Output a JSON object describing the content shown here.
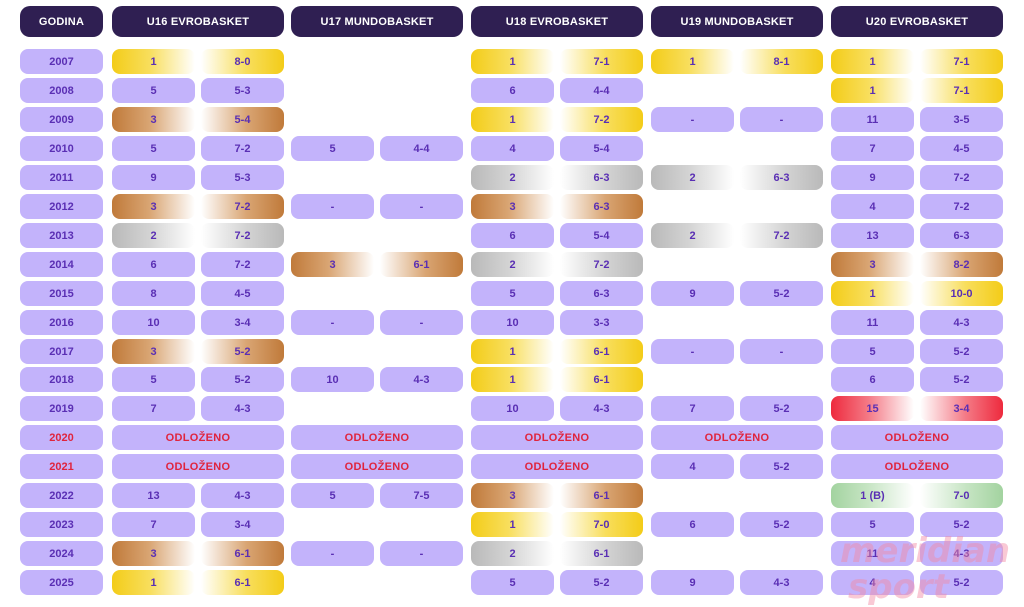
{
  "columns": [
    {
      "id": "godina",
      "label": "GODINA"
    },
    {
      "id": "u16",
      "label": "U16 EVROBASKET"
    },
    {
      "id": "u17",
      "label": "U17 MUNDOBASKET"
    },
    {
      "id": "u18",
      "label": "U18 EVROBASKET"
    },
    {
      "id": "u19",
      "label": "U19 MUNDOBASKET"
    },
    {
      "id": "u20",
      "label": "U20 EVROBASKET"
    }
  ],
  "postponed_label": "ODLOŽENO",
  "watermark": {
    "line1": "meridian",
    "line2": "sport"
  },
  "colors": {
    "header_bg": "#2f1f52",
    "cell_bg": "#c3b3fb",
    "text": "#5a2fb4",
    "postponed_text": "#e0243d",
    "gold": "#f3cc18",
    "silver": "#b9b9b9",
    "bronze": "#c07a3a",
    "last_place": "#ee2a3d",
    "division_b": "#a3d3a0"
  },
  "rows": [
    {
      "year": "2007",
      "u16": {
        "place": "1",
        "record": "8-0",
        "medal": "gold"
      },
      "u17": null,
      "u18": {
        "place": "1",
        "record": "7-1",
        "medal": "gold"
      },
      "u19": {
        "place": "1",
        "record": "8-1",
        "medal": "gold"
      },
      "u20": {
        "place": "1",
        "record": "7-1",
        "medal": "gold"
      }
    },
    {
      "year": "2008",
      "u16": {
        "place": "5",
        "record": "5-3"
      },
      "u17": null,
      "u18": {
        "place": "6",
        "record": "4-4"
      },
      "u19": null,
      "u20": {
        "place": "1",
        "record": "7-1",
        "medal": "gold"
      }
    },
    {
      "year": "2009",
      "u16": {
        "place": "3",
        "record": "5-4",
        "medal": "bronze"
      },
      "u17": null,
      "u18": {
        "place": "1",
        "record": "7-2",
        "medal": "gold"
      },
      "u19": {
        "place": "-",
        "record": "-"
      },
      "u20": {
        "place": "11",
        "record": "3-5"
      }
    },
    {
      "year": "2010",
      "u16": {
        "place": "5",
        "record": "7-2"
      },
      "u17": {
        "place": "5",
        "record": "4-4"
      },
      "u18": {
        "place": "4",
        "record": "5-4"
      },
      "u19": null,
      "u20": {
        "place": "7",
        "record": "4-5"
      }
    },
    {
      "year": "2011",
      "u16": {
        "place": "9",
        "record": "5-3"
      },
      "u17": null,
      "u18": {
        "place": "2",
        "record": "6-3",
        "medal": "silver"
      },
      "u19": {
        "place": "2",
        "record": "6-3",
        "medal": "silver"
      },
      "u20": {
        "place": "9",
        "record": "7-2"
      }
    },
    {
      "year": "2012",
      "u16": {
        "place": "3",
        "record": "7-2",
        "medal": "bronze"
      },
      "u17": {
        "place": "-",
        "record": "-"
      },
      "u18": {
        "place": "3",
        "record": "6-3",
        "medal": "bronze"
      },
      "u19": null,
      "u20": {
        "place": "4",
        "record": "7-2"
      }
    },
    {
      "year": "2013",
      "u16": {
        "place": "2",
        "record": "7-2",
        "medal": "silver"
      },
      "u17": null,
      "u18": {
        "place": "6",
        "record": "5-4"
      },
      "u19": {
        "place": "2",
        "record": "7-2",
        "medal": "silver"
      },
      "u20": {
        "place": "13",
        "record": "6-3"
      }
    },
    {
      "year": "2014",
      "u16": {
        "place": "6",
        "record": "7-2"
      },
      "u17": {
        "place": "3",
        "record": "6-1",
        "medal": "bronze"
      },
      "u18": {
        "place": "2",
        "record": "7-2",
        "medal": "silver"
      },
      "u19": null,
      "u20": {
        "place": "3",
        "record": "8-2",
        "medal": "bronze"
      }
    },
    {
      "year": "2015",
      "u16": {
        "place": "8",
        "record": "4-5"
      },
      "u17": null,
      "u18": {
        "place": "5",
        "record": "6-3"
      },
      "u19": {
        "place": "9",
        "record": "5-2"
      },
      "u20": {
        "place": "1",
        "record": "10-0",
        "medal": "gold"
      }
    },
    {
      "year": "2016",
      "u16": {
        "place": "10",
        "record": "3-4"
      },
      "u17": {
        "place": "-",
        "record": "-"
      },
      "u18": {
        "place": "10",
        "record": "3-3"
      },
      "u19": null,
      "u20": {
        "place": "11",
        "record": "4-3"
      }
    },
    {
      "year": "2017",
      "u16": {
        "place": "3",
        "record": "5-2",
        "medal": "bronze"
      },
      "u17": null,
      "u18": {
        "place": "1",
        "record": "6-1",
        "medal": "gold"
      },
      "u19": {
        "place": "-",
        "record": "-"
      },
      "u20": {
        "place": "5",
        "record": "5-2"
      }
    },
    {
      "year": "2018",
      "u16": {
        "place": "5",
        "record": "5-2"
      },
      "u17": {
        "place": "10",
        "record": "4-3"
      },
      "u18": {
        "place": "1",
        "record": "6-1",
        "medal": "gold"
      },
      "u19": null,
      "u20": {
        "place": "6",
        "record": "5-2"
      }
    },
    {
      "year": "2019",
      "u16": {
        "place": "7",
        "record": "4-3"
      },
      "u17": null,
      "u18": {
        "place": "10",
        "record": "4-3"
      },
      "u19": {
        "place": "7",
        "record": "5-2"
      },
      "u20": {
        "place": "15",
        "record": "3-4",
        "medal": "red"
      }
    },
    {
      "year": "2020",
      "year_highlight": "red",
      "u16": "postponed",
      "u17": "postponed",
      "u18": "postponed",
      "u19": "postponed",
      "u20": "postponed"
    },
    {
      "year": "2021",
      "year_highlight": "red",
      "u16": "postponed",
      "u17": "postponed",
      "u18": "postponed",
      "u19": {
        "place": "4",
        "record": "5-2"
      },
      "u20": "postponed"
    },
    {
      "year": "2022",
      "u16": {
        "place": "13",
        "record": "4-3"
      },
      "u17": {
        "place": "5",
        "record": "7-5"
      },
      "u18": {
        "place": "3",
        "record": "6-1",
        "medal": "bronze"
      },
      "u19": null,
      "u20": {
        "place": "1 (B)",
        "record": "7-0",
        "medal": "green"
      }
    },
    {
      "year": "2023",
      "u16": {
        "place": "7",
        "record": "3-4"
      },
      "u17": null,
      "u18": {
        "place": "1",
        "record": "7-0",
        "medal": "gold"
      },
      "u19": {
        "place": "6",
        "record": "5-2"
      },
      "u20": {
        "place": "5",
        "record": "5-2"
      }
    },
    {
      "year": "2024",
      "u16": {
        "place": "3",
        "record": "6-1",
        "medal": "bronze"
      },
      "u17": {
        "place": "-",
        "record": "-"
      },
      "u18": {
        "place": "2",
        "record": "6-1",
        "medal": "silver"
      },
      "u19": null,
      "u20": {
        "place": "11",
        "record": "4-3"
      }
    },
    {
      "year": "2025",
      "u16": {
        "place": "1",
        "record": "6-1",
        "medal": "gold"
      },
      "u17": null,
      "u18": {
        "place": "5",
        "record": "5-2"
      },
      "u19": {
        "place": "9",
        "record": "4-3"
      },
      "u20": {
        "place": "4",
        "record": "5-2"
      }
    }
  ]
}
